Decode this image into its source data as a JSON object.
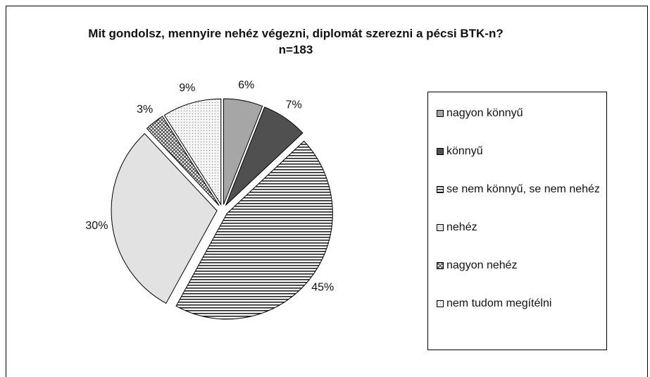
{
  "chart_data": {
    "type": "pie",
    "title": "Mit gondolsz, mennyire nehéz végezni, diplomát szerezni a pécsi BTK-n? n=183",
    "categories": [
      "nagyon könnyű",
      "könnyű",
      "se nem könnyű, se nem nehéz",
      "nehéz",
      "nagyon nehéz",
      "nem tudom megítélni"
    ],
    "values": [
      6,
      7,
      45,
      30,
      3,
      9
    ],
    "value_labels": [
      "6%",
      "7%",
      "45%",
      "30%",
      "3%",
      "9%"
    ],
    "colors": [
      "#a6a6a6",
      "#505050",
      "#ffffff",
      "#e2e2e2",
      "#ffffff",
      "#f4f4f4"
    ],
    "legend": "right"
  }
}
